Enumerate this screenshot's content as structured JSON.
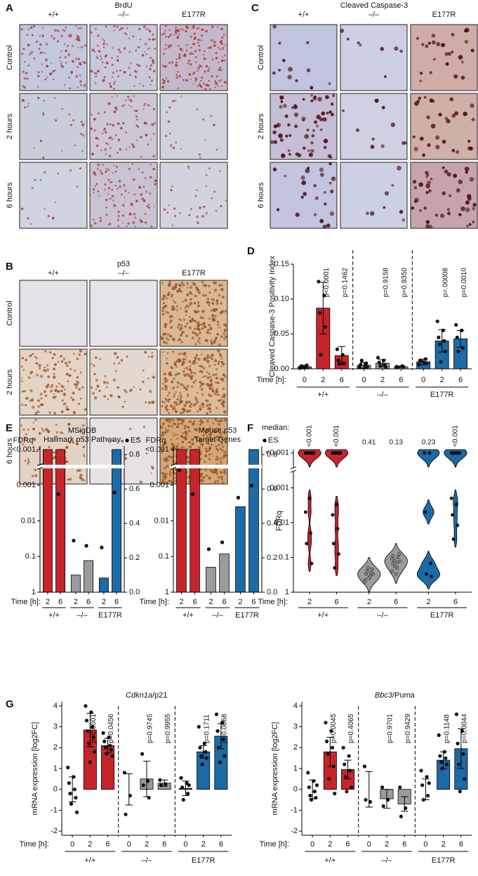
{
  "panel_labels": [
    "A",
    "B",
    "C",
    "D",
    "E",
    "F",
    "G"
  ],
  "panels": {
    "A": {
      "title": "BrdU",
      "columns": [
        "+/+",
        "–/–",
        "E177R"
      ],
      "rows": [
        "Control",
        "2 hours",
        "6 hours"
      ]
    },
    "B": {
      "title": "p53",
      "columns": [
        "+/+",
        "–/–",
        "E177R"
      ],
      "rows": [
        "Control",
        "2 hours",
        "6 hours"
      ]
    },
    "C": {
      "title": "Cleaved Caspase-3",
      "columns": [
        "+/+",
        "–/–",
        "E177R"
      ],
      "rows": [
        "Control",
        "2 hours",
        "6 hours"
      ]
    }
  },
  "chart_data": [
    {
      "type": "bar",
      "y_label": "Cleaved Caspase-3 Positivity Index",
      "x_label": "Time [h]:",
      "categories": [
        "0",
        "2",
        "6",
        "0",
        "2",
        "6",
        "0",
        "2",
        "6"
      ],
      "groups": [
        "+/+",
        "–/–",
        "E177R"
      ],
      "group_colors": [
        "#c5252b",
        "#9b9b9b",
        "#1c6aa6"
      ],
      "values": [
        0.003,
        0.087,
        0.019,
        0.005,
        0.008,
        0.003,
        0.01,
        0.04,
        0.043
      ],
      "errors": [
        0.002,
        0.037,
        0.013,
        0.004,
        0.005,
        0.001,
        0.004,
        0.016,
        0.012
      ],
      "points": [
        [
          0.001,
          0.002,
          0.004,
          0.005,
          0.003
        ],
        [
          0.125,
          0.105,
          0.08,
          0.06,
          0.02
        ],
        [
          0.028,
          0.02,
          0.012,
          0.008,
          0.007
        ],
        [
          0.002,
          0.004,
          0.006,
          0.008,
          0.012,
          0.003
        ],
        [
          0.016,
          0.012,
          0.009,
          0.006,
          0.004,
          0.002
        ],
        [
          0.003,
          0.004,
          0.002,
          0.003
        ],
        [
          0.006,
          0.009,
          0.012,
          0.014,
          0.011,
          0.008
        ],
        [
          0.068,
          0.055,
          0.045,
          0.04,
          0.035,
          0.025,
          0.01
        ],
        [
          0.063,
          0.055,
          0.045,
          0.03,
          0.025
        ]
      ],
      "annotations": [
        null,
        "p<0.0001",
        "p=0.1462",
        null,
        "p=0.9158",
        "p=0.9350",
        null,
        "p=.00008",
        "p=0.0010"
      ],
      "ylim": [
        0,
        0.15
      ],
      "yticks": [
        {
          "value": 0,
          "label": "0.00"
        },
        {
          "value": 0.05,
          "label": "0.05"
        },
        {
          "value": 0.1,
          "label": "0.10"
        },
        {
          "value": 0.15,
          "label": "0.15"
        }
      ]
    },
    {
      "type": "bar_log",
      "title_lines": [
        "MSigDB",
        "Hallmark p53 Pathway"
      ],
      "y_label": "FDRq",
      "x_label": "Time [h]:",
      "categories": [
        "2",
        "6",
        "2",
        "6",
        "2",
        "6"
      ],
      "groups": [
        "+/+",
        "–/–",
        "E177R"
      ],
      "group_colors": [
        "#c5252b",
        "#9b9b9b",
        "#1c6aa6"
      ],
      "log_scale": true,
      "reversed": true,
      "values": [
        0.0001,
        0.0001,
        0.33,
        0.13,
        0.4,
        0.0001
      ],
      "es": {
        "name": "ES",
        "axis": "y2",
        "color": "#000000",
        "values": [
          0.73,
          0.57,
          0.3,
          0.27,
          0.26,
          0.58
        ]
      },
      "ylim": [
        1,
        8e-05
      ],
      "yticks": [
        {
          "value": 0.0001,
          "label": "<0.001"
        },
        0.001,
        0.01,
        0.1,
        1
      ],
      "y2lim": [
        0,
        0.85
      ],
      "y2ticks": [
        {
          "value": 0,
          "label": "0.0"
        },
        0.2,
        0.4,
        0.6,
        0.8
      ]
    },
    {
      "type": "bar_log",
      "title_lines": [
        "Mouse p53",
        "Target Genes"
      ],
      "y_label": "FDRq",
      "x_label": "Time [h]:",
      "categories": [
        "2",
        "6",
        "2",
        "6",
        "2",
        "6"
      ],
      "groups": [
        "+/+",
        "–/–",
        "E177R"
      ],
      "group_colors": [
        "#c5252b",
        "#9b9b9b",
        "#1c6aa6"
      ],
      "log_scale": true,
      "reversed": true,
      "values": [
        0.0001,
        0.0001,
        0.2,
        0.085,
        0.004,
        0.0001
      ],
      "es": {
        "name": "ES",
        "axis": "y2",
        "color": "#000000",
        "values": [
          0.71,
          0.57,
          0.25,
          0.29,
          0.55,
          0.62
        ]
      },
      "ylim": [
        1,
        8e-05
      ],
      "yticks": [
        {
          "value": 0.0001,
          "label": "<0.001"
        },
        0.001,
        0.01,
        0.1,
        1
      ],
      "y2lim": [
        0,
        0.85
      ],
      "y2ticks": [
        {
          "value": 0,
          "label": "0.0"
        },
        0.2,
        0.4,
        0.6,
        0.8
      ]
    },
    {
      "type": "violin",
      "y_label": "FDRq",
      "x_label": "Time [h]:",
      "median_label": "median:",
      "medians": [
        "<0.001",
        "<0.001",
        "0.41",
        "0.13",
        "0.23",
        "<0.001"
      ],
      "categories": [
        "2",
        "6",
        "2",
        "6",
        "2",
        "6"
      ],
      "groups": [
        "+/+",
        "–/–",
        "E177R"
      ],
      "group_colors": [
        "#c5252b",
        "#9b9b9b",
        "#1c6aa6"
      ],
      "log_scale": true,
      "reversed": true,
      "points": [
        [
          0.0001,
          0.0001,
          0.0001,
          0.0001,
          0.0001,
          0.0001,
          0.0001,
          0.0001,
          0.002,
          0.005,
          0.02,
          0.04,
          0.15
        ],
        [
          0.0001,
          0.0001,
          0.0001,
          0.0001,
          0.0001,
          0.0001,
          0.0001,
          0.0001,
          0.003,
          0.006,
          0.015,
          0.04,
          0.08,
          0.2
        ],
        [
          0.45,
          0.35,
          0.3,
          0.28,
          0.25,
          0.22,
          0.2,
          0.3,
          0.4,
          0.5
        ],
        [
          0.25,
          0.2,
          0.15,
          0.1,
          0.12,
          0.08,
          0.18,
          0.13,
          0.3,
          0.11,
          0.14,
          0.09
        ],
        [
          0.0001,
          0.0001,
          0.005,
          0.15,
          0.3,
          0.35
        ],
        [
          0.0001,
          0.0001,
          0.0001,
          0.0001,
          0.0001,
          0.0001,
          0.0001,
          0.0001,
          0.0001,
          0.002,
          0.003,
          0.006,
          0.012,
          0.03
        ]
      ],
      "ylim": [
        1,
        8e-05
      ],
      "yticks": [
        {
          "value": 0.0001,
          "label": "<0.001"
        },
        0.001,
        0.01,
        0.1,
        1
      ]
    },
    {
      "type": "bar",
      "title_gene": "Cdkn1a",
      "title_protein": "/p21",
      "y_label": "mRNA expression [log2FC]",
      "x_label": "Time [h]:",
      "categories": [
        "0",
        "2",
        "6",
        "0",
        "2",
        "6",
        "0",
        "2",
        "6"
      ],
      "groups": [
        "+/+",
        "–/–",
        "E177R"
      ],
      "group_colors": [
        "#c5252b",
        "#9b9b9b",
        "#1c6aa6"
      ],
      "values": [
        0,
        2.85,
        2.1,
        0,
        0.5,
        0.3,
        0.05,
        1.8,
        2.55
      ],
      "errors": [
        0.6,
        0.8,
        0.35,
        0.75,
        0.85,
        0.15,
        0.35,
        0.3,
        0.6
      ],
      "points": [
        [
          1.05,
          0.6,
          0.3,
          0,
          -0.2,
          -0.4,
          -0.7,
          -1.1
        ],
        [
          4.0,
          3.7,
          3.3,
          3.0,
          2.8,
          2.5,
          2.2,
          1.8,
          1.3
        ],
        [
          2.7,
          2.5,
          2.3,
          2.1,
          2.0,
          1.9,
          1.7,
          1.6
        ],
        [
          0.8,
          -0.3,
          -1.2
        ],
        [
          1.7,
          0.4,
          0.2,
          -0.4
        ],
        [
          0.45,
          0.25,
          0.2
        ],
        [
          0.55,
          0.3,
          0.1,
          -0.2,
          -0.5,
          0.2
        ],
        [
          3.0,
          2.2,
          2.0,
          1.8,
          1.6,
          1.5,
          1.2
        ],
        [
          3.6,
          3.2,
          2.8,
          2.4,
          2.0,
          1.6,
          1.3
        ]
      ],
      "annotations": [
        null,
        "p<0.0001",
        "p=0.0456",
        null,
        "p=0.9745",
        "p=0.9955",
        null,
        "p=0.1711",
        "p=0.0068"
      ],
      "ylim": [
        -2.2,
        4.2
      ],
      "yticks": [
        -2,
        -1,
        0,
        1,
        2,
        3,
        4
      ]
    },
    {
      "type": "bar",
      "title_gene": "Bbc3",
      "title_protein": "/Puma",
      "y_label": "mRNA expression [log2FC]",
      "x_label": "Time [h]:",
      "categories": [
        "0",
        "2",
        "6",
        "0",
        "2",
        "6",
        "0",
        "2",
        "6"
      ],
      "groups": [
        "+/+",
        "–/–",
        "E177R"
      ],
      "group_colors": [
        "#c5252b",
        "#9b9b9b",
        "#1c6aa6"
      ],
      "values": [
        0,
        1.8,
        0.95,
        0,
        -0.45,
        -0.7,
        0,
        1.4,
        1.95
      ],
      "errors": [
        0.45,
        0.7,
        0.45,
        0.85,
        0.45,
        0.35,
        0.5,
        0.4,
        0.95
      ],
      "points": [
        [
          0.8,
          0.4,
          0.1,
          -0.1,
          -0.3,
          -0.4,
          -0.5,
          0.2
        ],
        [
          3.2,
          2.8,
          2.3,
          2.0,
          1.7,
          1.1,
          0.5,
          -0.2
        ],
        [
          2.0,
          1.6,
          1.2,
          0.9,
          0.6,
          0.1,
          -0.1
        ],
        [
          1.1,
          -0.6,
          -0.5
        ],
        [
          0.1,
          -0.5,
          -0.8
        ],
        [
          0.1,
          -0.9,
          -1.3
        ],
        [
          0.9,
          0.6,
          0.2,
          -0.3,
          -0.5,
          0.3
        ],
        [
          2.6,
          1.8,
          1.6,
          1.5,
          1.3,
          1.2,
          1.0
        ],
        [
          3.6,
          2.8,
          2.2,
          1.7,
          1.2,
          0.5,
          -0.1
        ]
      ],
      "annotations": [
        null,
        "p=0.0045",
        "p=0.4065",
        null,
        "p=0.9701",
        "p=0.9429",
        null,
        "p=0.1148",
        "p=0.0044"
      ],
      "ylim": [
        -2.2,
        4.2
      ],
      "yticks": [
        -2,
        -1,
        0,
        1,
        2,
        3,
        4
      ]
    }
  ]
}
